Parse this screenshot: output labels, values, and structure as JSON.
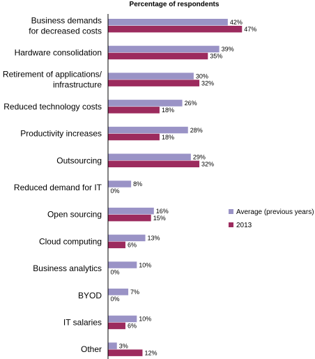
{
  "chart_data": {
    "type": "bar",
    "orientation": "horizontal",
    "title": "Percentage of respondents",
    "categories": [
      [
        "Business demands",
        "for decreased costs"
      ],
      [
        "Hardware consolidation"
      ],
      [
        "Retirement of applications/",
        "infrastructure"
      ],
      [
        "Reduced technology costs"
      ],
      [
        "Productivity increases"
      ],
      [
        "Outsourcing"
      ],
      [
        "Reduced demand for IT"
      ],
      [
        "Open sourcing"
      ],
      [
        "Cloud computing"
      ],
      [
        "Business analytics"
      ],
      [
        "BYOD"
      ],
      [
        "IT salaries"
      ],
      [
        "Other"
      ]
    ],
    "series": [
      {
        "name": "Average (previous years)",
        "color": "#9a93c6",
        "values": [
          42,
          39,
          30,
          26,
          28,
          29,
          8,
          16,
          13,
          10,
          7,
          10,
          3
        ]
      },
      {
        "name": "2013",
        "color": "#9c2b5e",
        "values": [
          47,
          35,
          32,
          18,
          18,
          32,
          0,
          15,
          6,
          0,
          0,
          6,
          12
        ]
      }
    ],
    "value_suffix": "%",
    "xlim": [
      0,
      50
    ],
    "grid": false,
    "legend_position": "right"
  }
}
